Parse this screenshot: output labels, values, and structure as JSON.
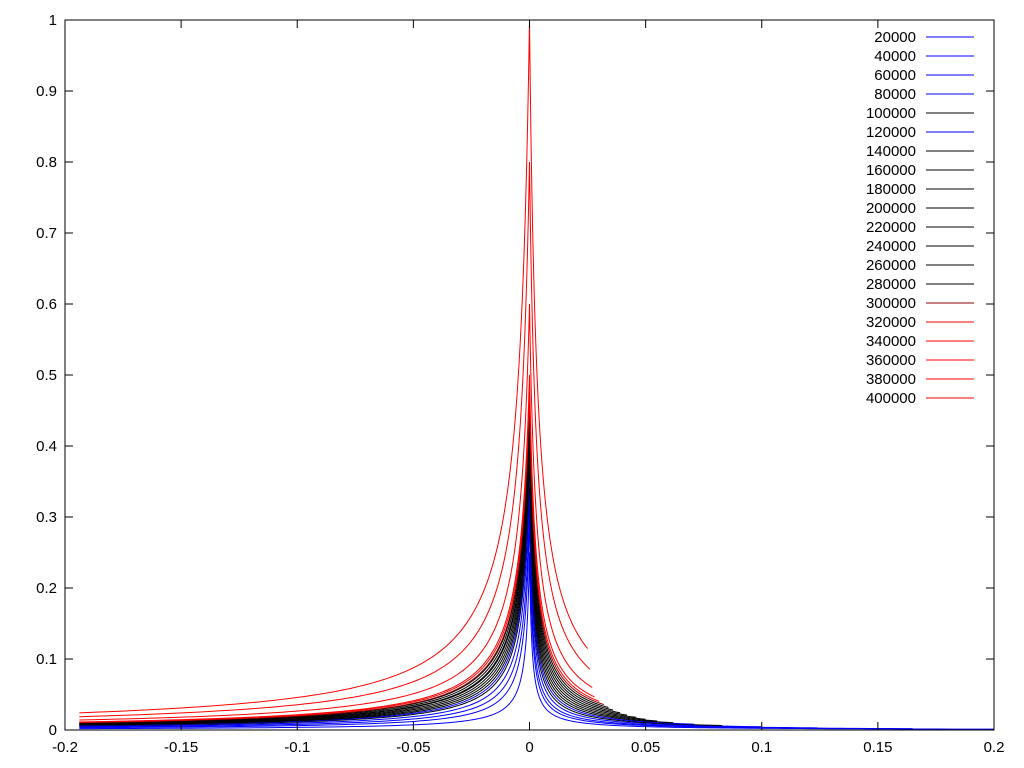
{
  "chart_data": {
    "type": "line",
    "title": "",
    "xlabel": "",
    "ylabel": "",
    "xlim": [
      -0.2,
      0.2
    ],
    "ylim": [
      0,
      1
    ],
    "x_ticks": [
      "-0.2",
      "-0.15",
      "-0.1",
      "-0.05",
      "0",
      "0.05",
      "0.1",
      "0.15",
      "0.2"
    ],
    "y_ticks": [
      "0",
      "0.1",
      "0.2",
      "0.3",
      "0.4",
      "0.5",
      "0.6",
      "0.7",
      "0.8",
      "0.9",
      "1"
    ],
    "grid": false,
    "legend_position": "top-right",
    "series": [
      {
        "name": "20000",
        "color": "#0000ff",
        "peak": 0.25,
        "left_scale": 0.01,
        "right_scale": 0.008,
        "x_min": -0.2,
        "x_max": 0.2
      },
      {
        "name": "40000",
        "color": "#0000ff",
        "peak": 0.3,
        "left_scale": 0.014,
        "right_scale": 0.009,
        "x_min": -0.2,
        "x_max": 0.165
      },
      {
        "name": "60000",
        "color": "#0000ff",
        "peak": 0.32,
        "left_scale": 0.017,
        "right_scale": 0.01,
        "x_min": -0.2,
        "x_max": 0.124
      },
      {
        "name": "80000",
        "color": "#0000ff",
        "peak": 0.35,
        "left_scale": 0.019,
        "right_scale": 0.011,
        "x_min": -0.2,
        "x_max": 0.1
      },
      {
        "name": "100000",
        "color": "#000000",
        "peak": 0.37,
        "left_scale": 0.021,
        "right_scale": 0.012,
        "x_min": -0.2,
        "x_max": 0.083
      },
      {
        "name": "120000",
        "color": "#0000ff",
        "peak": 0.38,
        "left_scale": 0.022,
        "right_scale": 0.013,
        "x_min": -0.2,
        "x_max": 0.071
      },
      {
        "name": "140000",
        "color": "#000000",
        "peak": 0.39,
        "left_scale": 0.023,
        "right_scale": 0.014,
        "x_min": -0.2,
        "x_max": 0.062
      },
      {
        "name": "160000",
        "color": "#000000",
        "peak": 0.4,
        "left_scale": 0.024,
        "right_scale": 0.015,
        "x_min": -0.2,
        "x_max": 0.055
      },
      {
        "name": "180000",
        "color": "#000000",
        "peak": 0.41,
        "left_scale": 0.025,
        "right_scale": 0.016,
        "x_min": -0.2,
        "x_max": 0.05
      },
      {
        "name": "200000",
        "color": "#000000",
        "peak": 0.42,
        "left_scale": 0.026,
        "right_scale": 0.017,
        "x_min": -0.2,
        "x_max": 0.046
      },
      {
        "name": "220000",
        "color": "#000000",
        "peak": 0.43,
        "left_scale": 0.027,
        "right_scale": 0.018,
        "x_min": -0.2,
        "x_max": 0.042
      },
      {
        "name": "240000",
        "color": "#000000",
        "peak": 0.44,
        "left_scale": 0.027,
        "right_scale": 0.019,
        "x_min": -0.2,
        "x_max": 0.039
      },
      {
        "name": "260000",
        "color": "#000000",
        "peak": 0.45,
        "left_scale": 0.028,
        "right_scale": 0.02,
        "x_min": -0.2,
        "x_max": 0.036
      },
      {
        "name": "280000",
        "color": "#000000",
        "peak": 0.46,
        "left_scale": 0.029,
        "right_scale": 0.021,
        "x_min": -0.2,
        "x_max": 0.034
      },
      {
        "name": "300000",
        "color": "#8b0000",
        "peak": 0.47,
        "left_scale": 0.029,
        "right_scale": 0.022,
        "x_min": -0.2,
        "x_max": 0.032
      },
      {
        "name": "320000",
        "color": "#ff0000",
        "peak": 0.48,
        "left_scale": 0.03,
        "right_scale": 0.023,
        "x_min": -0.2,
        "x_max": 0.03
      },
      {
        "name": "340000",
        "color": "#ff0000",
        "peak": 0.5,
        "left_scale": 0.03,
        "right_scale": 0.024,
        "x_min": -0.2,
        "x_max": 0.028
      },
      {
        "name": "360000",
        "color": "#ff0000",
        "peak": 0.6,
        "left_scale": 0.031,
        "right_scale": 0.025,
        "x_min": -0.2,
        "x_max": 0.027
      },
      {
        "name": "380000",
        "color": "#ff0000",
        "peak": 0.8,
        "left_scale": 0.031,
        "right_scale": 0.026,
        "x_min": -0.2,
        "x_max": 0.026
      },
      {
        "name": "400000",
        "color": "#ff0000",
        "peak": 1.0,
        "left_scale": 0.032,
        "right_scale": 0.027,
        "x_min": -0.2,
        "x_max": 0.025
      }
    ]
  }
}
